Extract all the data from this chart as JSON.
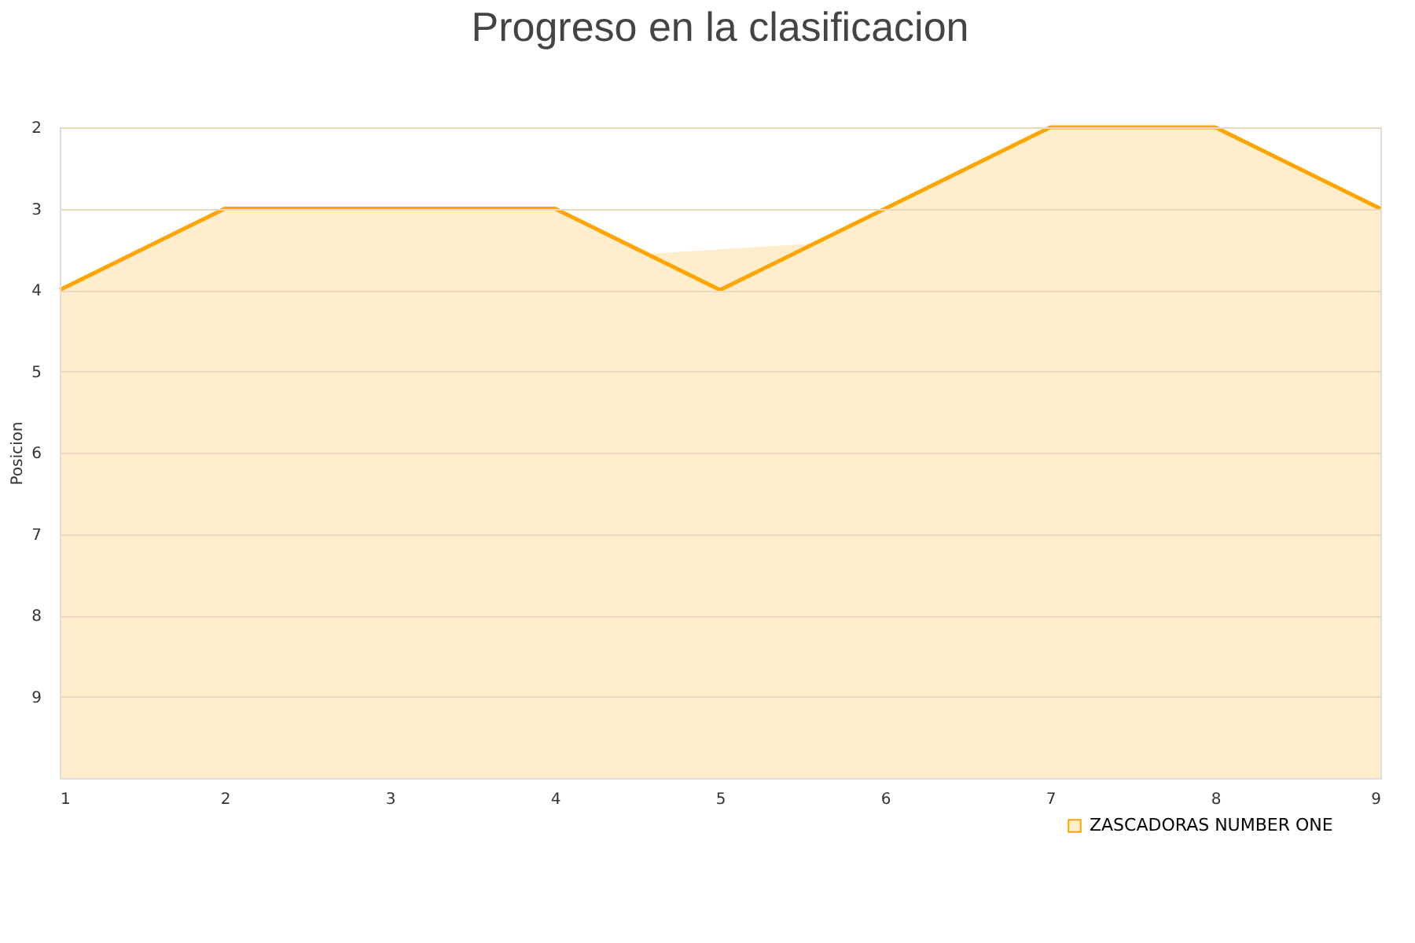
{
  "chart_data": {
    "type": "area",
    "title": "Progreso en la clasificacion",
    "ylabel": "Posicion",
    "x": [
      1,
      2,
      3,
      4,
      5,
      6,
      7,
      8,
      9
    ],
    "series": [
      {
        "name": "ZASCADORAS NUMBER ONE",
        "color": "#ffa500",
        "values": [
          4,
          3,
          3,
          3,
          4,
          3,
          2,
          2,
          3
        ]
      }
    ],
    "xlim": [
      1,
      9
    ],
    "xticks": [
      1,
      2,
      3,
      4,
      5,
      6,
      7,
      8,
      9
    ],
    "ylim": [
      10,
      2
    ],
    "yticks": [
      2,
      3,
      4,
      5,
      6,
      7,
      8,
      9
    ],
    "grid": "y",
    "legend": "bottom right"
  }
}
